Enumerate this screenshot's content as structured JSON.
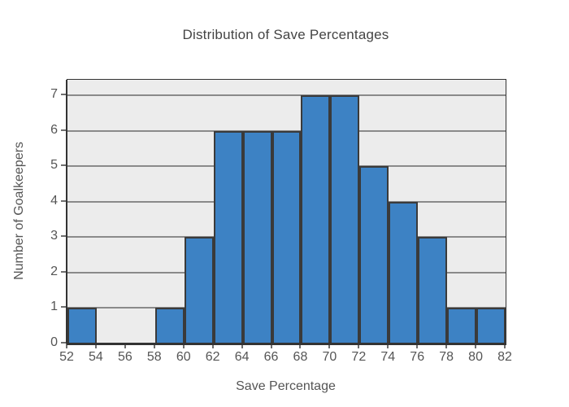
{
  "chart_data": {
    "type": "bar",
    "subtype": "histogram",
    "title": "Distribution of Save Percentages",
    "xlabel": "Save Percentage",
    "ylabel": "Number of Goalkeepers",
    "bin_edges": [
      52,
      54,
      56,
      58,
      60,
      62,
      64,
      66,
      68,
      70,
      72,
      74,
      76,
      78,
      80,
      82
    ],
    "counts": [
      1,
      0,
      0,
      1,
      3,
      6,
      6,
      6,
      7,
      7,
      5,
      4,
      3,
      1,
      1
    ],
    "x_ticks": [
      52,
      54,
      56,
      58,
      60,
      62,
      64,
      66,
      68,
      70,
      72,
      74,
      76,
      78,
      80,
      82
    ],
    "y_ticks": [
      0,
      1,
      2,
      3,
      4,
      5,
      6,
      7
    ],
    "xlim": [
      52,
      82
    ],
    "ylim": [
      0,
      7.44
    ],
    "grid": "horizontal",
    "legend": "none",
    "colors": {
      "bar_fill": "#3d82c4",
      "bar_border": "#3a3a3a",
      "plot_background": "#ececec",
      "gridline": "#8a8a8a",
      "axis_line": "#333333",
      "tick_label": "#555555",
      "title": "#444444"
    }
  }
}
